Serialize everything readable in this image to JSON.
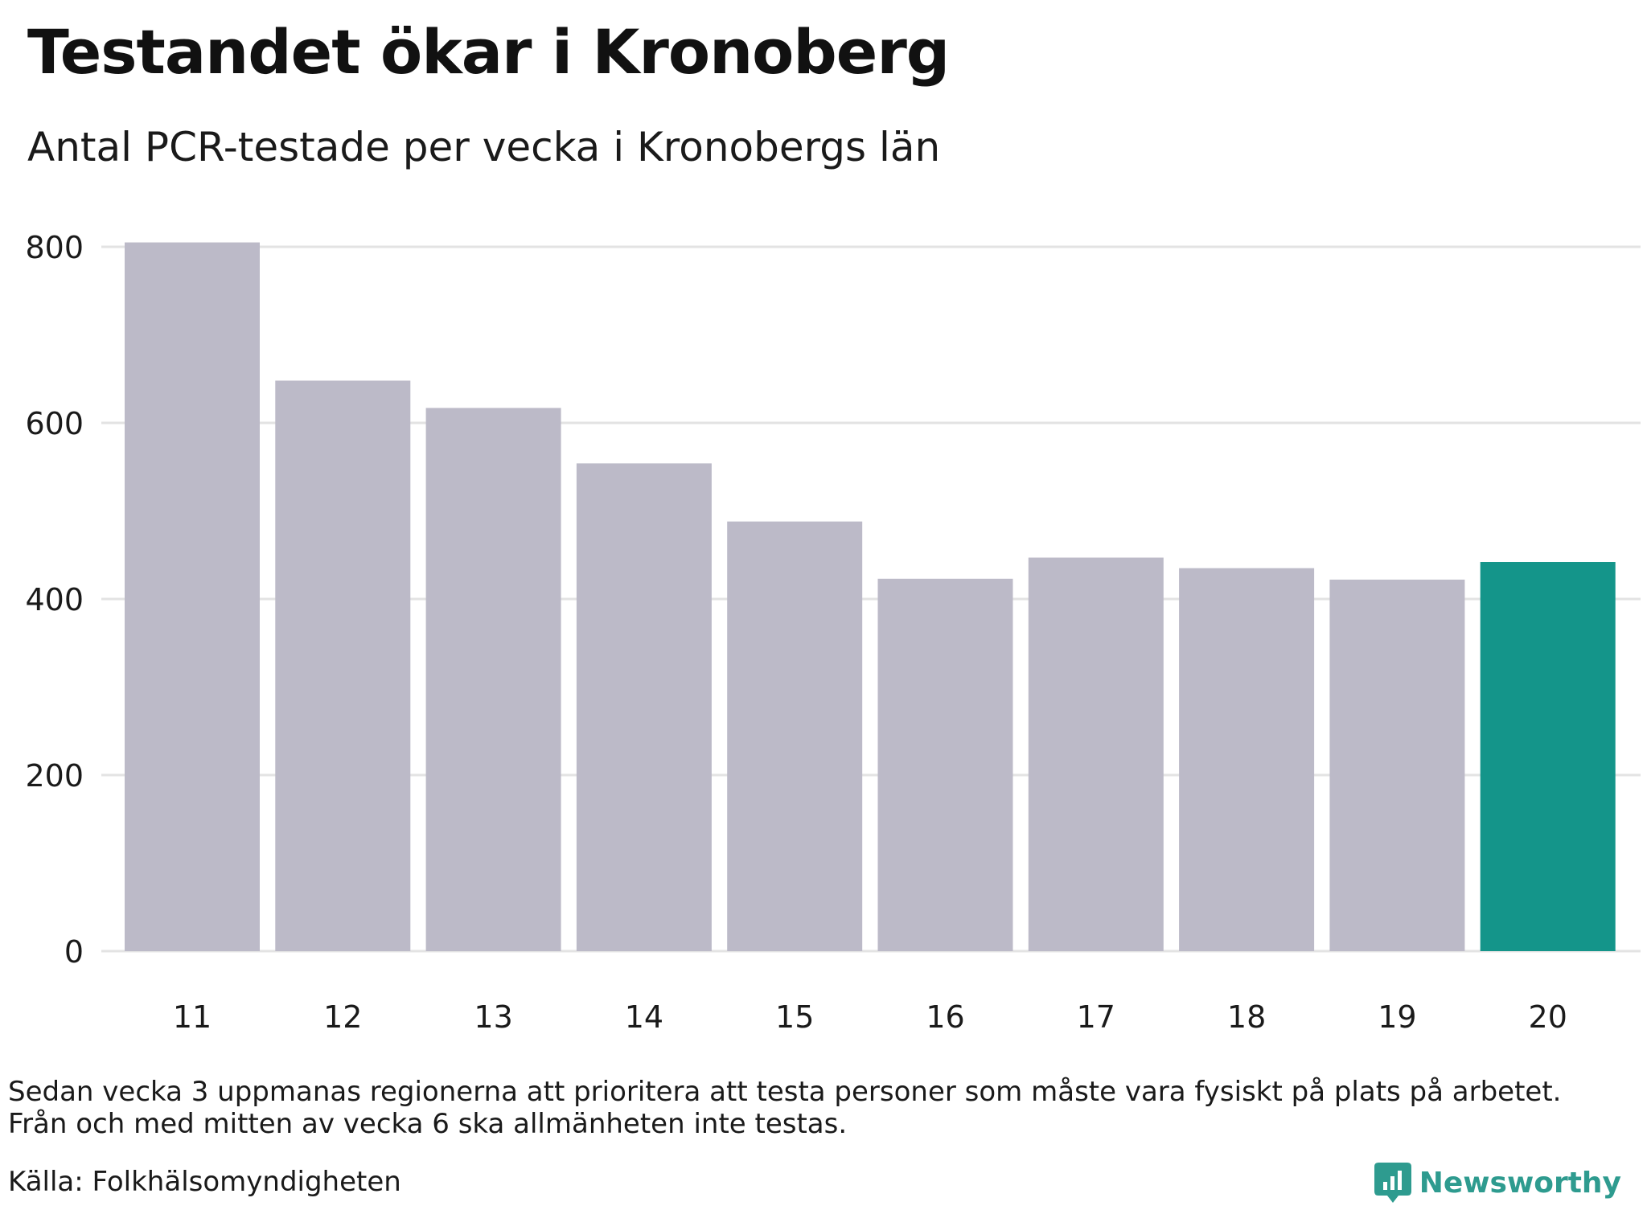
{
  "title": "Testandet ökar i Kronoberg",
  "subtitle": "Antal PCR-testade per vecka i Kronobergs län",
  "notes": [
    "Sedan vecka 3 uppmanas regionerna att prioritera att testa personer som måste vara fysiskt på plats på arbetet.",
    "Från och med mitten av vecka 6 ska allmänheten inte testas."
  ],
  "source": "Källa: Folkhälsomyndigheten",
  "brand": {
    "name": "Newsworthy",
    "icon": "bar-chart-logo-icon",
    "color": "#2e9b8f"
  },
  "colors": {
    "bar": "#bcbac8",
    "highlight": "#14958a",
    "grid": "#e3e3e3"
  },
  "chart_data": {
    "type": "bar",
    "categories": [
      "11",
      "12",
      "13",
      "14",
      "15",
      "16",
      "17",
      "18",
      "19",
      "20"
    ],
    "values": [
      805,
      648,
      617,
      554,
      488,
      423,
      447,
      435,
      422,
      442
    ],
    "highlight_index": 9,
    "title": "Testandet ökar i Kronoberg",
    "subtitle": "Antal PCR-testade per vecka i Kronobergs län",
    "xlabel": "",
    "ylabel": "",
    "ylim": [
      0,
      800
    ],
    "yticks": [
      0,
      200,
      400,
      600,
      800
    ],
    "grid": true,
    "legend": "none"
  }
}
